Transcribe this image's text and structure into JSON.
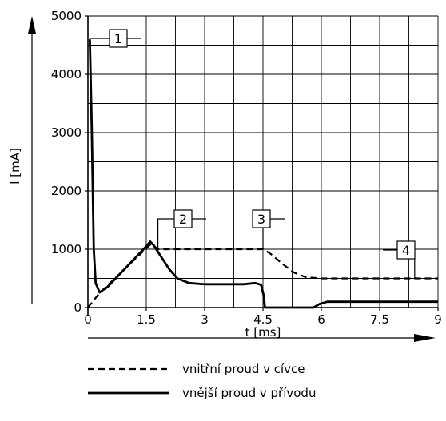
{
  "chart_data": {
    "type": "line",
    "title": "",
    "xlabel": "t [ms]",
    "ylabel": "I [mA]",
    "xlim": [
      0,
      9
    ],
    "ylim": [
      0,
      5000
    ],
    "x_ticks": [
      0,
      1.5,
      3,
      4.5,
      6,
      7.5,
      9
    ],
    "x_tick_labels": [
      "0",
      "1.5",
      "3",
      "4.5",
      "6",
      "7.5",
      "9"
    ],
    "y_ticks": [
      0,
      1000,
      2000,
      3000,
      4000,
      5000
    ],
    "y_tick_labels": [
      "0",
      "1000",
      "2000",
      "3000",
      "4000",
      "5000"
    ],
    "grid": true,
    "legend_position": "bottom",
    "series": [
      {
        "name": "vnitřní proud v cívce",
        "style": "dashed",
        "points": [
          [
            0,
            0
          ],
          [
            0.3,
            250
          ],
          [
            1.62,
            1090
          ],
          [
            1.8,
            1000
          ],
          [
            4.5,
            1000
          ],
          [
            4.7,
            920
          ],
          [
            5.0,
            750
          ],
          [
            5.3,
            600
          ],
          [
            5.6,
            520
          ],
          [
            6.0,
            500
          ],
          [
            9.0,
            500
          ]
        ]
      },
      {
        "name": "vnější proud v přívodu",
        "style": "solid",
        "points": [
          [
            0.05,
            4600
          ],
          [
            0.1,
            3000
          ],
          [
            0.15,
            1000
          ],
          [
            0.2,
            420
          ],
          [
            0.3,
            260
          ],
          [
            0.5,
            350
          ],
          [
            1.0,
            700
          ],
          [
            1.5,
            1050
          ],
          [
            1.6,
            1130
          ],
          [
            1.7,
            1060
          ],
          [
            1.9,
            850
          ],
          [
            2.1,
            650
          ],
          [
            2.3,
            500
          ],
          [
            2.6,
            420
          ],
          [
            3.0,
            400
          ],
          [
            4.0,
            400
          ],
          [
            4.3,
            420
          ],
          [
            4.45,
            390
          ],
          [
            4.52,
            200
          ],
          [
            4.55,
            0
          ],
          [
            5.8,
            0
          ],
          [
            5.95,
            60
          ],
          [
            6.15,
            100
          ],
          [
            9.0,
            100
          ]
        ]
      }
    ],
    "callouts": [
      {
        "label": "1",
        "x": 0.05,
        "y": 4600
      },
      {
        "label": "2",
        "x": 1.8,
        "y": 1000
      },
      {
        "label": "3",
        "x": 4.5,
        "y": 1000
      },
      {
        "label": "4",
        "x": 8.4,
        "y": 500
      }
    ]
  }
}
